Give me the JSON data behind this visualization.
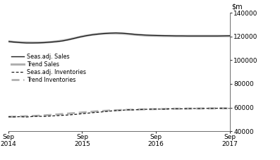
{
  "ylim": [
    40000,
    140000
  ],
  "yticks": [
    40000,
    60000,
    80000,
    100000,
    120000,
    140000
  ],
  "x_start": 2014.667,
  "x_end": 2017.667,
  "xtick_positions": [
    2014.667,
    2015.667,
    2016.667,
    2017.667
  ],
  "xtick_labels": [
    "Sep\n2014",
    "Sep\n2015",
    "Sep\n2016",
    "Sep\n2017"
  ],
  "seas_adj_sales": [
    115800,
    115200,
    114800,
    114500,
    114500,
    114600,
    114800,
    115200,
    115600,
    116200,
    117200,
    118400,
    119600,
    120600,
    121400,
    122000,
    122500,
    122800,
    123000,
    122800,
    122400,
    121900,
    121500,
    121200,
    121000,
    120800,
    120700,
    120600,
    120500,
    120500,
    120400,
    120400,
    120400,
    120400,
    120400,
    120400,
    120500,
    120600
  ],
  "trend_sales": [
    115800,
    115400,
    115100,
    114900,
    114800,
    114800,
    115000,
    115300,
    115800,
    116500,
    117400,
    118500,
    119700,
    120700,
    121500,
    122100,
    122500,
    122700,
    122700,
    122500,
    122100,
    121600,
    121200,
    120900,
    120700,
    120600,
    120500,
    120500,
    120400,
    120400,
    120400,
    120400,
    120400,
    120400,
    120400,
    120400,
    120400,
    120400
  ],
  "seas_adj_inventories": [
    52200,
    52100,
    52300,
    52000,
    52400,
    52600,
    52500,
    52800,
    53100,
    53400,
    53700,
    54100,
    54600,
    55100,
    55600,
    56000,
    56500,
    57000,
    57400,
    57700,
    58100,
    58000,
    58300,
    58500,
    58600,
    58700,
    58600,
    58900,
    59000,
    58900,
    59100,
    59200,
    59100,
    59300,
    59200,
    59400,
    59400,
    59300
  ],
  "trend_inventories": [
    52200,
    52300,
    52500,
    52700,
    52900,
    53100,
    53400,
    53700,
    54100,
    54500,
    54900,
    55300,
    55700,
    56100,
    56500,
    56900,
    57200,
    57500,
    57700,
    57900,
    58100,
    58200,
    58400,
    58500,
    58600,
    58700,
    58800,
    58900,
    59000,
    59000,
    59100,
    59100,
    59200,
    59200,
    59300,
    59300,
    59300,
    59300
  ],
  "color_black": "#1a1a1a",
  "color_gray": "#b0b0b0",
  "background_color": "#ffffff",
  "legend_items": [
    {
      "label": "Seas.adj.  Sales",
      "color": "#1a1a1a",
      "ls": "solid",
      "lw": 1.0
    },
    {
      "label": "Trend Sales",
      "color": "#b0b0b0",
      "ls": "solid",
      "lw": 2.2
    },
    {
      "label": "- - - Seas.adj.  Inventories",
      "color": "#1a1a1a",
      "ls": "dashed",
      "lw": 1.0
    },
    {
      "label": "Trend Inventories",
      "color": "#b0b0b0",
      "ls": "dashed",
      "lw": 2.0
    }
  ]
}
